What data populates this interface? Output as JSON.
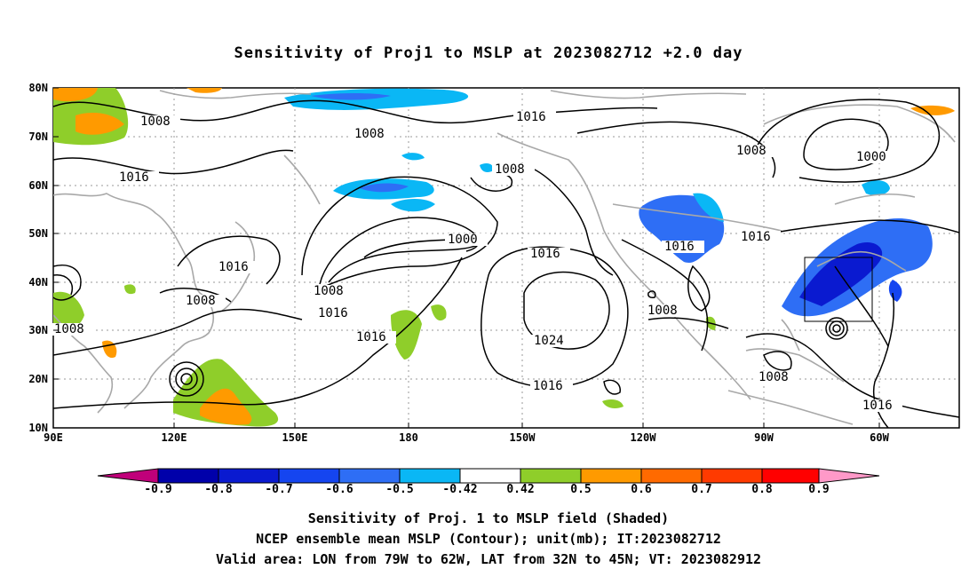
{
  "title": "Sensitivity of Proj1 to MSLP at 2023082712 +2.0 day",
  "map": {
    "lat_labels": [
      "80N",
      "70N",
      "60N",
      "50N",
      "40N",
      "30N",
      "20N",
      "10N"
    ],
    "lon_labels": [
      "90E",
      "120E",
      "150E",
      "180",
      "150W",
      "120W",
      "90W",
      "60W"
    ],
    "contour_labels": [
      {
        "text": "1008"
      },
      {
        "text": "1008"
      },
      {
        "text": "1016"
      },
      {
        "text": "1008"
      },
      {
        "text": "1008"
      },
      {
        "text": "1000"
      },
      {
        "text": "1016"
      },
      {
        "text": "1000"
      },
      {
        "text": "1016"
      },
      {
        "text": "1016"
      },
      {
        "text": "1016"
      },
      {
        "text": "1016"
      },
      {
        "text": "1008"
      },
      {
        "text": "1008"
      },
      {
        "text": "1016"
      },
      {
        "text": "1016"
      },
      {
        "text": "1008"
      },
      {
        "text": "1024"
      },
      {
        "text": "1008"
      },
      {
        "text": "1016"
      },
      {
        "text": "1008"
      },
      {
        "text": "1016"
      }
    ],
    "valid_box": {
      "lon_west": "79W",
      "lon_east": "62W",
      "lat_south": "32N",
      "lat_north": "45N"
    }
  },
  "colorbar": {
    "labels": [
      "-0.9",
      "-0.8",
      "-0.7",
      "-0.6",
      "-0.5",
      "-0.42",
      "0.42",
      "0.5",
      "0.6",
      "0.7",
      "0.8",
      "0.9"
    ],
    "colors": [
      "#0000aa",
      "#0a1ad0",
      "#1545f0",
      "#2e6ef5",
      "#0ab7f5",
      "#ffffff",
      "#8fce2a",
      "#ff9a00",
      "#ff6a00",
      "#ff3a00",
      "#ff0000"
    ],
    "low_end_color": "#c0007a",
    "high_end_color": "#ff99c8"
  },
  "captions": {
    "line1": "Sensitivity of Proj. 1 to MSLP field (Shaded)",
    "line2": "NCEP ensemble mean MSLP (Contour); unit(mb); IT:2023082712",
    "line3": "Valid area: LON from 79W to 62W, LAT from 32N to 45N; VT: 2023082912"
  }
}
